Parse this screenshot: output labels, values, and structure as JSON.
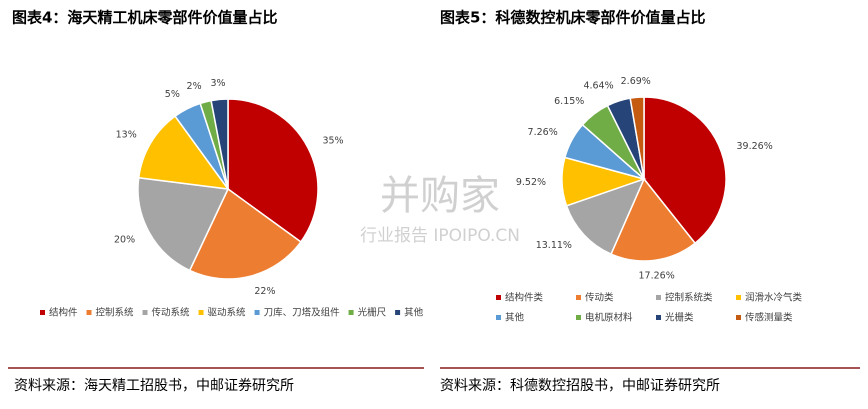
{
  "chart_data": [
    {
      "type": "pie",
      "title": "图表4：海天精工机床零部件价值量占比",
      "categories": [
        "结构件",
        "控制系统",
        "传动系统",
        "驱动系统",
        "刀库、刀塔及组件",
        "光栅尺",
        "其他"
      ],
      "values": [
        35,
        22,
        20,
        13,
        5,
        2,
        3
      ],
      "value_labels": [
        "35%",
        "22%",
        "20%",
        "13%",
        "5%",
        "2%",
        "3%"
      ],
      "colors": [
        "#c00000",
        "#ed7d31",
        "#a5a5a5",
        "#ffc000",
        "#5b9bd5",
        "#70ad47",
        "#264478"
      ],
      "source": "资料来源：海天精工招股书，中邮证券研究所"
    },
    {
      "type": "pie",
      "title": "图表5：科德数控机床零部件价值量占比",
      "categories": [
        "结构件类",
        "传动类",
        "控制系统类",
        "润滑水冷气类",
        "其他",
        "电机原材料",
        "光栅类",
        "传感测量类"
      ],
      "values": [
        39.26,
        17.26,
        13.11,
        9.52,
        7.26,
        6.15,
        4.64,
        2.69
      ],
      "value_labels": [
        "39.26%",
        "17.26%",
        "13.11%",
        "9.52%",
        "7.26%",
        "6.15%",
        "4.64%",
        "2.69%"
      ],
      "colors": [
        "#c00000",
        "#ed7d31",
        "#a5a5a5",
        "#ffc000",
        "#5b9bd5",
        "#70ad47",
        "#264478",
        "#c55a11"
      ],
      "source": "资料来源：科德数控招股书，中邮证券研究所"
    }
  ],
  "watermark": {
    "text": "并购家",
    "subtext": "行业报告 IPOIPO.CN"
  }
}
